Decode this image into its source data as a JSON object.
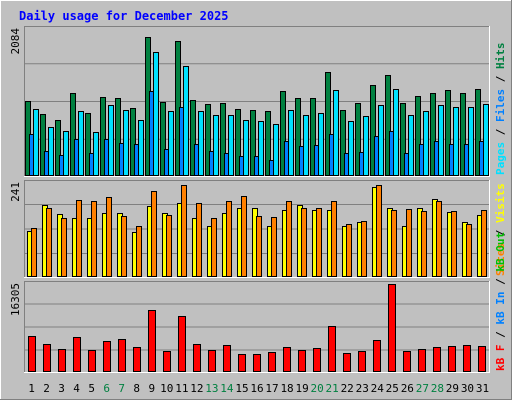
{
  "chart_data": [
    {
      "type": "bar",
      "panel": "hits-files-pages",
      "title": "Daily usage for December 2025",
      "ymax_label": "2084",
      "ylim": [
        0,
        2084
      ],
      "grid": true,
      "categories": [
        "1",
        "2",
        "3",
        "4",
        "5",
        "6",
        "7",
        "8",
        "9",
        "10",
        "11",
        "12",
        "13",
        "14",
        "15",
        "16",
        "17",
        "18",
        "19",
        "20",
        "21",
        "22",
        "23",
        "24",
        "25",
        "26",
        "27",
        "28",
        "29",
        "30",
        "31"
      ],
      "weekend_days": [
        "6",
        "7",
        "13",
        "14",
        "20",
        "21",
        "27",
        "28"
      ],
      "legend": [
        {
          "parts": [
            "Pages",
            "Files",
            "Hits"
          ],
          "colors": [
            "#00e0ff",
            "#0080ff",
            "#008040"
          ]
        }
      ],
      "series": [
        {
          "name": "Hits",
          "color": "#008040",
          "values": [
            1070,
            880,
            800,
            1170,
            900,
            1120,
            1110,
            960,
            1965,
            1050,
            1910,
            1080,
            1020,
            1030,
            950,
            940,
            920,
            1200,
            1100,
            1100,
            1480,
            940,
            1040,
            1290,
            1430,
            1040,
            1140,
            1180,
            1220,
            1170,
            1230
          ]
        },
        {
          "name": "Files",
          "color": "#0080ff",
          "values": [
            600,
            350,
            300,
            520,
            330,
            530,
            470,
            450,
            1200,
            380,
            980,
            460,
            350,
            330,
            290,
            290,
            220,
            500,
            420,
            440,
            600,
            330,
            340,
            560,
            640,
            330,
            450,
            500,
            460,
            460,
            490
          ]
        },
        {
          "name": "Pages",
          "color": "#00e0ff",
          "values": [
            950,
            700,
            640,
            920,
            630,
            1000,
            930,
            800,
            1760,
            920,
            1560,
            920,
            860,
            870,
            800,
            780,
            740,
            940,
            860,
            890,
            1220,
            780,
            850,
            1000,
            1240,
            860,
            920,
            1000,
            980,
            980,
            1020
          ]
        }
      ]
    },
    {
      "type": "bar",
      "panel": "visits-sites",
      "ymax_label": "241",
      "ylim": [
        0,
        241
      ],
      "grid": true,
      "categories": [
        "1",
        "2",
        "3",
        "4",
        "5",
        "6",
        "7",
        "8",
        "9",
        "10",
        "11",
        "12",
        "13",
        "14",
        "15",
        "16",
        "17",
        "18",
        "19",
        "20",
        "21",
        "22",
        "23",
        "24",
        "25",
        "26",
        "27",
        "28",
        "29",
        "30",
        "31"
      ],
      "legend": [
        {
          "parts": [
            "Sites",
            "Visits"
          ],
          "colors": [
            "#ff8000",
            "#ffff00"
          ]
        }
      ],
      "series": [
        {
          "name": "Visits",
          "color": "#ffff00",
          "values": [
            118,
            184,
            162,
            151,
            151,
            163,
            163,
            115,
            183,
            164,
            190,
            151,
            132,
            165,
            176,
            176,
            130,
            172,
            184,
            172,
            172,
            130,
            140,
            230,
            176,
            130,
            176,
            200,
            167,
            140,
            160
          ]
        },
        {
          "name": "Sites",
          "color": "#ff8000",
          "values": [
            125,
            176,
            151,
            198,
            196,
            204,
            156,
            130,
            220,
            160,
            236,
            190,
            150,
            196,
            208,
            156,
            155,
            196,
            178,
            178,
            196,
            135,
            144,
            236,
            172,
            175,
            170,
            194,
            168,
            136,
            172
          ]
        }
      ]
    },
    {
      "type": "bar",
      "panel": "kbytes",
      "ymax_label": "16305",
      "ylim": [
        0,
        16305
      ],
      "grid": true,
      "categories": [
        "1",
        "2",
        "3",
        "4",
        "5",
        "6",
        "7",
        "8",
        "9",
        "10",
        "11",
        "12",
        "13",
        "14",
        "15",
        "16",
        "17",
        "18",
        "19",
        "20",
        "21",
        "22",
        "23",
        "24",
        "25",
        "26",
        "27",
        "28",
        "29",
        "30",
        "31"
      ],
      "legend": [
        {
          "parts": [
            "kB F",
            "kB In",
            "kB Out"
          ],
          "colors": [
            "#ff0000",
            "#0080ff",
            "#00c000"
          ]
        }
      ],
      "series": [
        {
          "name": "kB F",
          "color": "#ff0000",
          "values": [
            6600,
            5200,
            4300,
            6500,
            4100,
            5800,
            6200,
            4600,
            11500,
            3800,
            10300,
            5100,
            4100,
            5000,
            3400,
            3400,
            3700,
            4600,
            4000,
            4400,
            8500,
            3500,
            3900,
            5900,
            16305,
            3800,
            4300,
            4600,
            4800,
            5000,
            4800
          ]
        }
      ]
    }
  ]
}
